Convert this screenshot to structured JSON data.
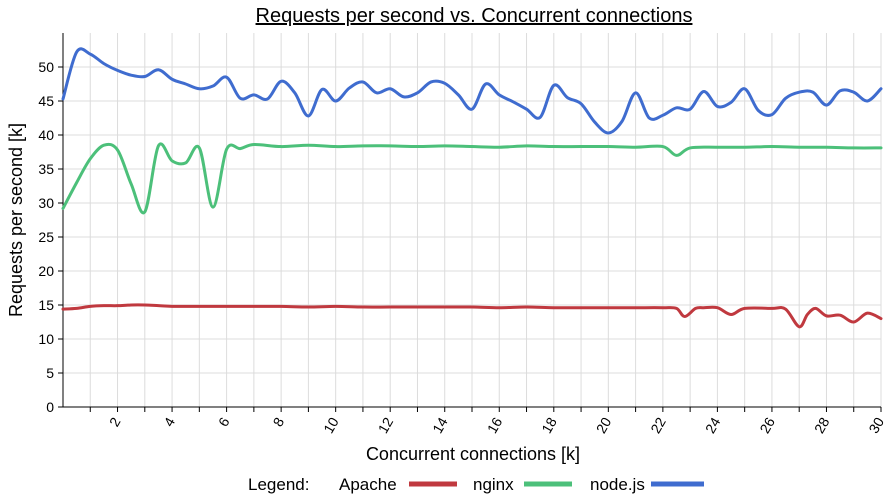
{
  "chart_data": {
    "type": "line",
    "title": "Requests per second vs. Concurrent connections",
    "xlabel": "Concurrent connections [k]",
    "ylabel": "Requests per second [k]",
    "xlim": [
      0,
      30
    ],
    "ylim": [
      0,
      55
    ],
    "xticks": [
      2,
      4,
      6,
      8,
      10,
      12,
      14,
      16,
      18,
      20,
      22,
      24,
      26,
      28,
      30
    ],
    "yticks": [
      0,
      5,
      10,
      15,
      20,
      25,
      30,
      35,
      40,
      45,
      50
    ],
    "grid": true,
    "legend": {
      "title": "Legend:",
      "position": "bottom"
    },
    "series": [
      {
        "name": "Apache",
        "color": "#c0393f",
        "x": [
          0,
          0.5,
          1,
          1.5,
          2,
          2.5,
          3,
          3.5,
          4,
          5,
          6,
          7,
          8,
          9,
          10,
          11,
          12,
          13,
          14,
          15,
          16,
          17,
          18,
          19,
          20,
          21,
          22,
          22.5,
          22.8,
          23.2,
          23.5,
          24,
          24.5,
          25,
          26,
          26.5,
          27,
          27.3,
          27.6,
          28,
          28.5,
          29,
          29.5,
          30
        ],
        "y": [
          14.4,
          14.5,
          14.8,
          14.9,
          14.9,
          15,
          15,
          14.9,
          14.8,
          14.8,
          14.8,
          14.8,
          14.8,
          14.7,
          14.8,
          14.7,
          14.7,
          14.7,
          14.7,
          14.7,
          14.6,
          14.7,
          14.6,
          14.6,
          14.6,
          14.6,
          14.6,
          14.5,
          13.3,
          14.5,
          14.6,
          14.6,
          13.6,
          14.5,
          14.5,
          14.4,
          11.8,
          13.6,
          14.5,
          13.4,
          13.5,
          12.5,
          13.8,
          13.0
        ]
      },
      {
        "name": "nginx",
        "color": "#4cc07a",
        "x": [
          0,
          0.5,
          1,
          1.5,
          2,
          2.5,
          3,
          3.5,
          4,
          4.5,
          5,
          5.5,
          6,
          6.5,
          7,
          8,
          9,
          10,
          11,
          12,
          13,
          14,
          15,
          16,
          17,
          18,
          19,
          20,
          21,
          22,
          22.5,
          23,
          24,
          25,
          26,
          27,
          28,
          29,
          30
        ],
        "y": [
          29.2,
          33,
          36.5,
          38.5,
          37.8,
          32.8,
          28.7,
          38.4,
          36.2,
          35.9,
          38.1,
          29.4,
          37.9,
          38,
          38.6,
          38.3,
          38.5,
          38.3,
          38.4,
          38.4,
          38.3,
          38.4,
          38.3,
          38.2,
          38.4,
          38.3,
          38.3,
          38.3,
          38.2,
          38.3,
          37.0,
          38.1,
          38.2,
          38.2,
          38.3,
          38.2,
          38.2,
          38.1,
          38.1
        ]
      },
      {
        "name": "node.js",
        "color": "#3f6ccf",
        "x": [
          0,
          0.5,
          1,
          1.5,
          2,
          2.5,
          3,
          3.5,
          4,
          4.5,
          5,
          5.5,
          6,
          6.5,
          7,
          7.5,
          8,
          8.5,
          9,
          9.5,
          10,
          10.5,
          11,
          11.5,
          12,
          12.5,
          13,
          13.5,
          14,
          14.5,
          15,
          15.5,
          16,
          16.5,
          17,
          17.5,
          18,
          18.5,
          19,
          19.5,
          20,
          20.5,
          21,
          21.5,
          22,
          22.5,
          23,
          23.5,
          24,
          24.5,
          25,
          25.5,
          26,
          26.5,
          27,
          27.5,
          28,
          28.5,
          29,
          29.5,
          30
        ],
        "y": [
          45.3,
          52.2,
          51.9,
          50.5,
          49.5,
          48.8,
          48.6,
          49.6,
          48.2,
          47.5,
          46.8,
          47.2,
          48.5,
          45.4,
          45.9,
          45.3,
          47.9,
          46.2,
          42.8,
          46.7,
          45.0,
          46.9,
          47.8,
          46.2,
          46.8,
          45.6,
          46.2,
          47.8,
          47.6,
          45.9,
          43.8,
          47.5,
          45.9,
          44.9,
          43.8,
          42.6,
          47.3,
          45.5,
          44.6,
          41.9,
          40.3,
          42.0,
          46.2,
          42.5,
          42.9,
          44.0,
          43.8,
          46.4,
          44.2,
          44.8,
          46.8,
          43.6,
          43.0,
          45.4,
          46.3,
          46.3,
          44.4,
          46.5,
          46.3,
          45.0,
          46.8
        ]
      }
    ]
  }
}
